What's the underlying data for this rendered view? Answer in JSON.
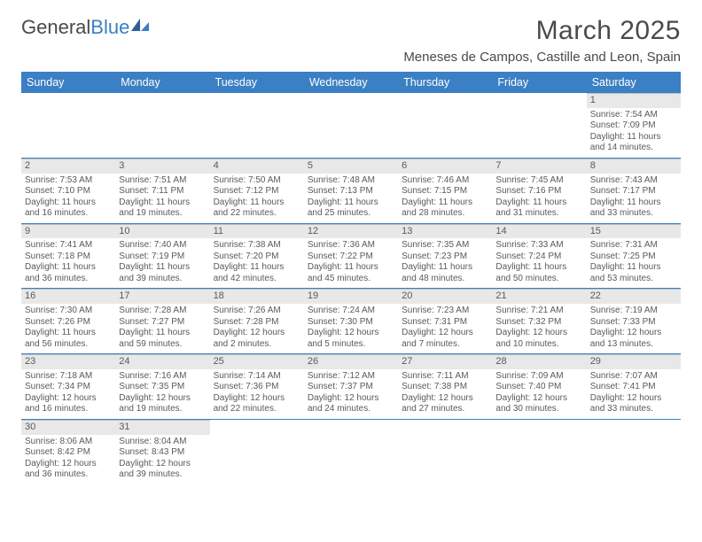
{
  "brand": {
    "part1": "General",
    "part2": "Blue"
  },
  "title": "March 2025",
  "location": "Meneses de Campos, Castille and Leon, Spain",
  "colors": {
    "accent": "#3b7fc4",
    "text": "#4a4a4a",
    "cell_border": "#bfbfbf",
    "daynum_bg": "#e8e8e8"
  },
  "dow": [
    "Sunday",
    "Monday",
    "Tuesday",
    "Wednesday",
    "Thursday",
    "Friday",
    "Saturday"
  ],
  "weeks": [
    [
      null,
      null,
      null,
      null,
      null,
      null,
      {
        "n": "1",
        "sr": "Sunrise: 7:54 AM",
        "ss": "Sunset: 7:09 PM",
        "d1": "Daylight: 11 hours",
        "d2": "and 14 minutes."
      }
    ],
    [
      {
        "n": "2",
        "sr": "Sunrise: 7:53 AM",
        "ss": "Sunset: 7:10 PM",
        "d1": "Daylight: 11 hours",
        "d2": "and 16 minutes."
      },
      {
        "n": "3",
        "sr": "Sunrise: 7:51 AM",
        "ss": "Sunset: 7:11 PM",
        "d1": "Daylight: 11 hours",
        "d2": "and 19 minutes."
      },
      {
        "n": "4",
        "sr": "Sunrise: 7:50 AM",
        "ss": "Sunset: 7:12 PM",
        "d1": "Daylight: 11 hours",
        "d2": "and 22 minutes."
      },
      {
        "n": "5",
        "sr": "Sunrise: 7:48 AM",
        "ss": "Sunset: 7:13 PM",
        "d1": "Daylight: 11 hours",
        "d2": "and 25 minutes."
      },
      {
        "n": "6",
        "sr": "Sunrise: 7:46 AM",
        "ss": "Sunset: 7:15 PM",
        "d1": "Daylight: 11 hours",
        "d2": "and 28 minutes."
      },
      {
        "n": "7",
        "sr": "Sunrise: 7:45 AM",
        "ss": "Sunset: 7:16 PM",
        "d1": "Daylight: 11 hours",
        "d2": "and 31 minutes."
      },
      {
        "n": "8",
        "sr": "Sunrise: 7:43 AM",
        "ss": "Sunset: 7:17 PM",
        "d1": "Daylight: 11 hours",
        "d2": "and 33 minutes."
      }
    ],
    [
      {
        "n": "9",
        "sr": "Sunrise: 7:41 AM",
        "ss": "Sunset: 7:18 PM",
        "d1": "Daylight: 11 hours",
        "d2": "and 36 minutes."
      },
      {
        "n": "10",
        "sr": "Sunrise: 7:40 AM",
        "ss": "Sunset: 7:19 PM",
        "d1": "Daylight: 11 hours",
        "d2": "and 39 minutes."
      },
      {
        "n": "11",
        "sr": "Sunrise: 7:38 AM",
        "ss": "Sunset: 7:20 PM",
        "d1": "Daylight: 11 hours",
        "d2": "and 42 minutes."
      },
      {
        "n": "12",
        "sr": "Sunrise: 7:36 AM",
        "ss": "Sunset: 7:22 PM",
        "d1": "Daylight: 11 hours",
        "d2": "and 45 minutes."
      },
      {
        "n": "13",
        "sr": "Sunrise: 7:35 AM",
        "ss": "Sunset: 7:23 PM",
        "d1": "Daylight: 11 hours",
        "d2": "and 48 minutes."
      },
      {
        "n": "14",
        "sr": "Sunrise: 7:33 AM",
        "ss": "Sunset: 7:24 PM",
        "d1": "Daylight: 11 hours",
        "d2": "and 50 minutes."
      },
      {
        "n": "15",
        "sr": "Sunrise: 7:31 AM",
        "ss": "Sunset: 7:25 PM",
        "d1": "Daylight: 11 hours",
        "d2": "and 53 minutes."
      }
    ],
    [
      {
        "n": "16",
        "sr": "Sunrise: 7:30 AM",
        "ss": "Sunset: 7:26 PM",
        "d1": "Daylight: 11 hours",
        "d2": "and 56 minutes."
      },
      {
        "n": "17",
        "sr": "Sunrise: 7:28 AM",
        "ss": "Sunset: 7:27 PM",
        "d1": "Daylight: 11 hours",
        "d2": "and 59 minutes."
      },
      {
        "n": "18",
        "sr": "Sunrise: 7:26 AM",
        "ss": "Sunset: 7:28 PM",
        "d1": "Daylight: 12 hours",
        "d2": "and 2 minutes."
      },
      {
        "n": "19",
        "sr": "Sunrise: 7:24 AM",
        "ss": "Sunset: 7:30 PM",
        "d1": "Daylight: 12 hours",
        "d2": "and 5 minutes."
      },
      {
        "n": "20",
        "sr": "Sunrise: 7:23 AM",
        "ss": "Sunset: 7:31 PM",
        "d1": "Daylight: 12 hours",
        "d2": "and 7 minutes."
      },
      {
        "n": "21",
        "sr": "Sunrise: 7:21 AM",
        "ss": "Sunset: 7:32 PM",
        "d1": "Daylight: 12 hours",
        "d2": "and 10 minutes."
      },
      {
        "n": "22",
        "sr": "Sunrise: 7:19 AM",
        "ss": "Sunset: 7:33 PM",
        "d1": "Daylight: 12 hours",
        "d2": "and 13 minutes."
      }
    ],
    [
      {
        "n": "23",
        "sr": "Sunrise: 7:18 AM",
        "ss": "Sunset: 7:34 PM",
        "d1": "Daylight: 12 hours",
        "d2": "and 16 minutes."
      },
      {
        "n": "24",
        "sr": "Sunrise: 7:16 AM",
        "ss": "Sunset: 7:35 PM",
        "d1": "Daylight: 12 hours",
        "d2": "and 19 minutes."
      },
      {
        "n": "25",
        "sr": "Sunrise: 7:14 AM",
        "ss": "Sunset: 7:36 PM",
        "d1": "Daylight: 12 hours",
        "d2": "and 22 minutes."
      },
      {
        "n": "26",
        "sr": "Sunrise: 7:12 AM",
        "ss": "Sunset: 7:37 PM",
        "d1": "Daylight: 12 hours",
        "d2": "and 24 minutes."
      },
      {
        "n": "27",
        "sr": "Sunrise: 7:11 AM",
        "ss": "Sunset: 7:38 PM",
        "d1": "Daylight: 12 hours",
        "d2": "and 27 minutes."
      },
      {
        "n": "28",
        "sr": "Sunrise: 7:09 AM",
        "ss": "Sunset: 7:40 PM",
        "d1": "Daylight: 12 hours",
        "d2": "and 30 minutes."
      },
      {
        "n": "29",
        "sr": "Sunrise: 7:07 AM",
        "ss": "Sunset: 7:41 PM",
        "d1": "Daylight: 12 hours",
        "d2": "and 33 minutes."
      }
    ],
    [
      {
        "n": "30",
        "sr": "Sunrise: 8:06 AM",
        "ss": "Sunset: 8:42 PM",
        "d1": "Daylight: 12 hours",
        "d2": "and 36 minutes."
      },
      {
        "n": "31",
        "sr": "Sunrise: 8:04 AM",
        "ss": "Sunset: 8:43 PM",
        "d1": "Daylight: 12 hours",
        "d2": "and 39 minutes."
      },
      null,
      null,
      null,
      null,
      null
    ]
  ]
}
